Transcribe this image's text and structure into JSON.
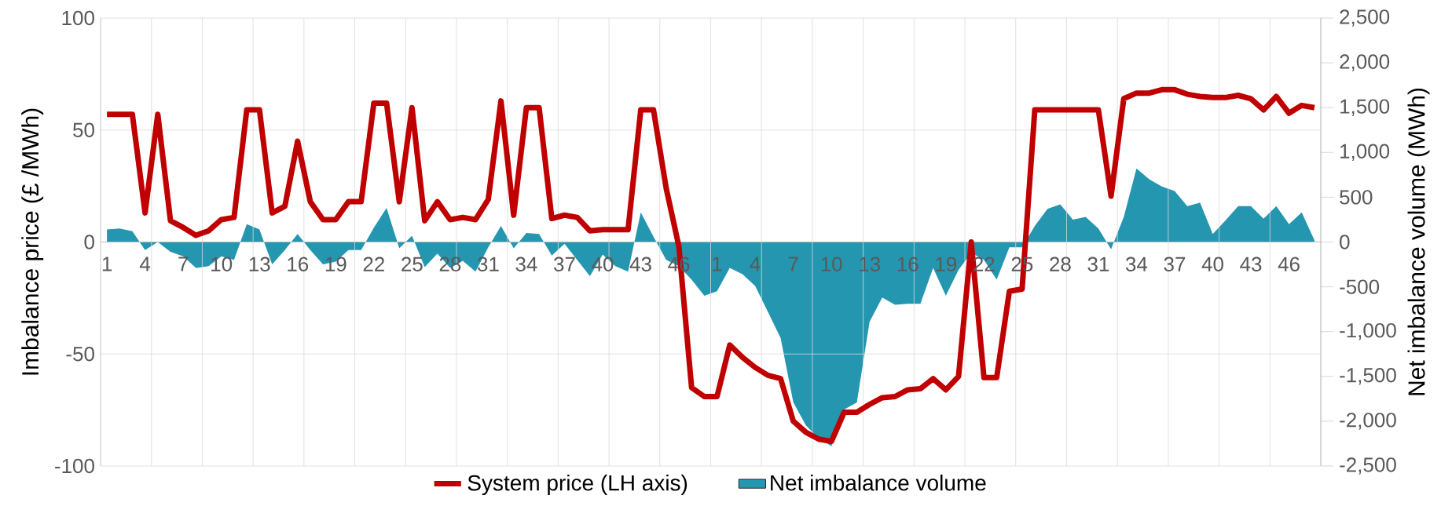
{
  "chart_data": {
    "type": "line",
    "categories": [
      "1",
      null,
      null,
      "4",
      null,
      null,
      "7",
      null,
      null,
      "10",
      null,
      null,
      "13",
      null,
      null,
      "16",
      null,
      null,
      "19",
      null,
      null,
      "22",
      null,
      null,
      "25",
      null,
      null,
      "28",
      null,
      null,
      "31",
      null,
      null,
      "34",
      null,
      null,
      "37",
      null,
      null,
      "40",
      null,
      null,
      "43",
      null,
      null,
      "46",
      null,
      null,
      "1",
      null,
      null,
      "4",
      null,
      null,
      "7",
      null,
      null,
      "10",
      null,
      null,
      "13",
      null,
      null,
      "16",
      null,
      null,
      "19",
      null,
      null,
      "22",
      null,
      null,
      "25",
      null,
      null,
      "28",
      null,
      null,
      "31",
      null,
      null,
      "34",
      null,
      null,
      "37",
      null,
      null,
      "40",
      null,
      null,
      "43",
      null,
      null,
      "46",
      null,
      null
    ],
    "series": [
      {
        "name": "System price (LH axis)",
        "color": "#c00000",
        "values": [
          57,
          57,
          57,
          13,
          57,
          9.5,
          6.5,
          3,
          5,
          10,
          11,
          59,
          59,
          13,
          16,
          45,
          18,
          10,
          10,
          18,
          18,
          62,
          62,
          18,
          60,
          9.5,
          18,
          10,
          11,
          10,
          19,
          63,
          12,
          60,
          60,
          10.5,
          12,
          11,
          5,
          5.5,
          5.5,
          5.5,
          59,
          59,
          24,
          -2,
          -65,
          -69,
          -69,
          -46,
          -51.5,
          -56,
          -59.5,
          -61,
          -80,
          -85,
          -88,
          -89,
          -76,
          -76,
          -72.5,
          -69.5,
          -69,
          -66,
          -65.5,
          -61,
          -66,
          -60,
          0,
          -60.5,
          -60.5,
          -22,
          -21,
          59,
          59,
          59,
          59,
          59,
          59,
          20.5,
          64,
          66.5,
          66.5,
          68,
          68,
          66,
          65,
          64.5,
          64.5,
          65.5,
          64,
          59,
          65,
          57.5,
          61,
          60
        ]
      },
      {
        "name": "Net imbalance volume",
        "type": "area",
        "axis": "y2",
        "color": "#2596b0",
        "values": [
          140,
          150,
          120,
          -90,
          0,
          -110,
          -160,
          -290,
          -270,
          -160,
          -200,
          200,
          140,
          -250,
          -90,
          90,
          -90,
          -250,
          -220,
          -90,
          -90,
          160,
          380,
          -70,
          70,
          -280,
          -130,
          -290,
          -210,
          -330,
          -60,
          180,
          -70,
          100,
          90,
          -150,
          -20,
          -200,
          -380,
          -140,
          -270,
          -330,
          330,
          60,
          -200,
          -270,
          -420,
          -600,
          -550,
          -290,
          -360,
          -490,
          -780,
          -1070,
          -1790,
          -2050,
          -2190,
          -2280,
          -1870,
          -1790,
          -890,
          -620,
          -700,
          -690,
          -690,
          -290,
          -600,
          -310,
          -120,
          -200,
          -420,
          -60,
          -60,
          180,
          370,
          420,
          250,
          280,
          150,
          -80,
          280,
          820,
          700,
          620,
          570,
          400,
          440,
          90,
          240,
          400,
          400,
          260,
          400,
          200,
          330,
          20
        ]
      }
    ],
    "ylabel": "Imbalance price (£ /MWh)",
    "y2label": "Net imbalance volume (MWh)",
    "ylim": [
      -100,
      100
    ],
    "yticks": [
      -100,
      -50,
      0,
      50,
      100
    ],
    "y2lim": [
      -2500,
      2500
    ],
    "y2ticks": [
      {
        "value": -2500,
        "label": "-2,500"
      },
      {
        "value": -2000,
        "label": "-2,000"
      },
      {
        "value": -1500,
        "label": "-1,500"
      },
      {
        "value": -1000,
        "label": "-1,000"
      },
      -500,
      0,
      500,
      {
        "value": 1000,
        "label": "1,000"
      },
      {
        "value": 1500,
        "label": "1,500"
      },
      {
        "value": 2000,
        "label": "2,000"
      },
      {
        "value": 2500,
        "label": "2,500"
      }
    ],
    "grid": true,
    "legend": "bottom"
  }
}
